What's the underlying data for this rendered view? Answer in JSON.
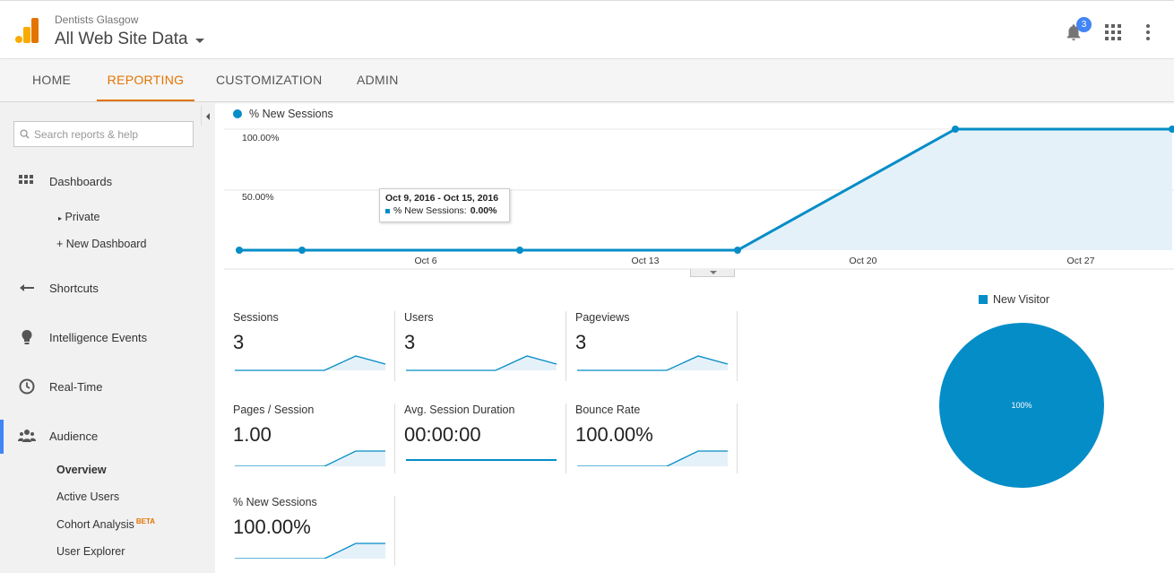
{
  "header": {
    "account": "Dentists Glasgow",
    "property": "All Web Site Data",
    "notifications_count": "3",
    "icons": [
      "analytics-logo-icon",
      "bell-icon",
      "apps-grid-icon",
      "more-vert-icon"
    ]
  },
  "nav": {
    "tabs": [
      {
        "label": "HOME",
        "active": false
      },
      {
        "label": "REPORTING",
        "active": true
      },
      {
        "label": "CUSTOMIZATION",
        "active": false
      },
      {
        "label": "ADMIN",
        "active": false
      }
    ],
    "accent_color": "#e37400"
  },
  "sidebar": {
    "search_placeholder": "Search reports & help",
    "items": {
      "dashboards": "Dashboards",
      "private": "Private",
      "new_dashboard": "+ New Dashboard",
      "shortcuts": "Shortcuts",
      "intelligence": "Intelligence Events",
      "realtime": "Real-Time",
      "audience": "Audience",
      "overview": "Overview",
      "active_users": "Active Users",
      "cohort": "Cohort Analysis",
      "cohort_badge": "BETA",
      "user_explorer": "User Explorer"
    }
  },
  "chart_data": [
    {
      "type": "area",
      "series": [
        {
          "name": "% New Sessions",
          "values": [
            0,
            0,
            0,
            0,
            100,
            100
          ]
        }
      ],
      "x_labels": [
        "Oct 6",
        "Oct 13",
        "Oct 20",
        "Oct 27"
      ],
      "y_ticks": [
        "100.00%",
        "50.00%"
      ],
      "ylim": [
        0,
        100
      ],
      "color": "#058dc7",
      "tooltip": {
        "title": "Oct 9, 2016 - Oct 15, 2016",
        "label": "% New Sessions:",
        "value": "0.00%"
      }
    },
    {
      "type": "pie",
      "series": [
        {
          "name": "New Visitor",
          "values": [
            100
          ]
        }
      ],
      "labels": [
        "New Visitor"
      ],
      "slice_label": "100%",
      "color": "#058dc7"
    }
  ],
  "metrics": [
    {
      "name": "Sessions",
      "value": "3",
      "spark": "bump"
    },
    {
      "name": "Users",
      "value": "3",
      "spark": "bump"
    },
    {
      "name": "Pageviews",
      "value": "3",
      "spark": "bump"
    },
    {
      "name": "Pages / Session",
      "value": "1.00",
      "spark": "step"
    },
    {
      "name": "Avg. Session Duration",
      "value": "00:00:00",
      "spark": "flat"
    },
    {
      "name": "Bounce Rate",
      "value": "100.00%",
      "spark": "step"
    },
    {
      "name": "% New Sessions",
      "value": "100.00%",
      "spark": "step"
    }
  ]
}
